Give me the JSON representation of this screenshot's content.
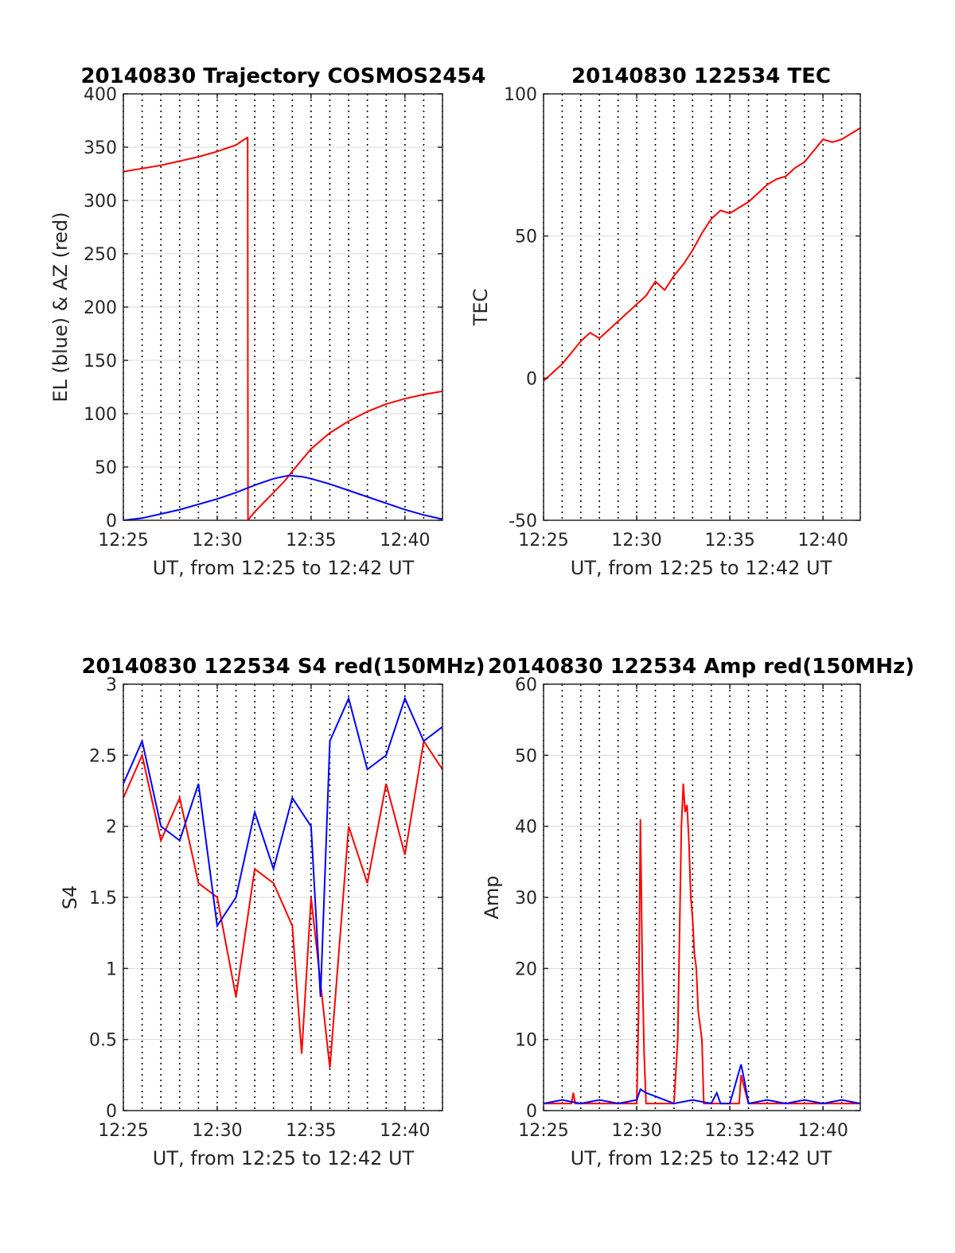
{
  "colors": {
    "red": "#ff0000",
    "blue": "#0000ff",
    "grid": "#d9d9d9",
    "axis": "#262626"
  },
  "chart_data": [
    {
      "type": "line",
      "title": "20140830 Trajectory COSMOS2454",
      "xlabel": "UT, from 12:25 to 12:42 UT",
      "ylabel": "EL (blue) & AZ (red)",
      "xlim": [
        0,
        17
      ],
      "ylim": [
        0,
        400
      ],
      "xticks": [
        0,
        5,
        10,
        15
      ],
      "xtick_labels": [
        "12:25",
        "12:30",
        "12:35",
        "12:40"
      ],
      "yticks": [
        0,
        50,
        100,
        150,
        200,
        250,
        300,
        350,
        400
      ],
      "ytick_labels": [
        "0",
        "50",
        "100",
        "150",
        "200",
        "250",
        "300",
        "350",
        "400"
      ],
      "series": [
        {
          "color": "red",
          "x": [
            0.0,
            2.0,
            4.0,
            5.0,
            6.0,
            6.6,
            6.62,
            6.64,
            7.0,
            8.0,
            8.6,
            9.0,
            10.0,
            11.0,
            12.0,
            13.0,
            14.0,
            15.0,
            16.0,
            17.0
          ],
          "y": [
            327,
            333,
            341,
            346,
            352,
            359,
            359,
            0,
            8,
            26,
            37,
            46,
            67,
            82,
            93,
            102,
            109,
            114,
            118,
            121
          ]
        },
        {
          "color": "blue",
          "x": [
            0.0,
            1.0,
            2.0,
            3.0,
            4.0,
            5.0,
            6.0,
            7.0,
            8.0,
            8.8,
            9.5,
            10.0,
            11.0,
            12.0,
            13.0,
            14.0,
            15.0,
            16.0,
            17.0
          ],
          "y": [
            0,
            2,
            6,
            10,
            15,
            20,
            26,
            33,
            39,
            42,
            41,
            39,
            34,
            28,
            22,
            16,
            10,
            5,
            1
          ]
        }
      ]
    },
    {
      "type": "line",
      "title": "20140830 122534 TEC",
      "xlabel": "UT, from 12:25 to 12:42 UT",
      "ylabel": "TEC",
      "xlim": [
        0,
        17
      ],
      "ylim": [
        -50,
        100
      ],
      "xticks": [
        0,
        5,
        10,
        15
      ],
      "xtick_labels": [
        "12:25",
        "12:30",
        "12:35",
        "12:40"
      ],
      "yticks": [
        -50,
        0,
        50,
        100
      ],
      "ytick_labels": [
        "-50",
        "0",
        "50",
        "100"
      ],
      "series": [
        {
          "color": "red",
          "x": [
            0.0,
            0.5,
            1.0,
            1.5,
            2.0,
            2.5,
            3.0,
            3.5,
            4.0,
            4.5,
            5.0,
            5.5,
            6.0,
            6.5,
            7.0,
            7.5,
            8.0,
            8.5,
            9.0,
            9.5,
            10.0,
            10.5,
            11.0,
            11.5,
            12.0,
            12.5,
            13.0,
            13.5,
            14.0,
            14.5,
            15.0,
            15.5,
            16.0,
            16.5,
            17.0
          ],
          "y": [
            -1,
            2,
            5,
            9,
            13,
            16,
            14,
            17,
            20,
            23,
            26,
            29,
            34,
            31,
            36,
            40,
            45,
            51,
            56,
            59,
            58,
            60,
            62,
            65,
            68,
            70,
            71,
            74,
            76,
            80,
            84,
            83,
            84,
            86,
            88
          ]
        }
      ]
    },
    {
      "type": "line",
      "title": "20140830 122534 S4 red(150MHz)",
      "xlabel": "UT, from 12:25 to 12:42 UT",
      "ylabel": "S4",
      "xlim": [
        0,
        17
      ],
      "ylim": [
        0,
        3
      ],
      "xticks": [
        0,
        5,
        10,
        15
      ],
      "xtick_labels": [
        "12:25",
        "12:30",
        "12:35",
        "12:40"
      ],
      "yticks": [
        0,
        0.5,
        1,
        1.5,
        2,
        2.5,
        3
      ],
      "ytick_labels": [
        "0",
        "0.5",
        "1",
        "1.5",
        "2",
        "2.5",
        "3"
      ],
      "series": [
        {
          "color": "red",
          "x": [
            0.0,
            1.0,
            2.0,
            3.0,
            4.0,
            5.0,
            6.0,
            7.0,
            8.0,
            9.0,
            9.5,
            10.0,
            10.5,
            11.0,
            12.0,
            13.0,
            14.0,
            15.0,
            16.0,
            17.0
          ],
          "y": [
            2.2,
            2.5,
            1.9,
            2.2,
            1.6,
            1.5,
            0.8,
            1.7,
            1.6,
            1.3,
            0.4,
            1.5,
            0.9,
            0.3,
            2.0,
            1.6,
            2.3,
            1.8,
            2.6,
            2.4
          ]
        },
        {
          "color": "blue",
          "x": [
            0.0,
            1.0,
            2.0,
            3.0,
            4.0,
            5.0,
            6.0,
            7.0,
            8.0,
            9.0,
            10.0,
            10.5,
            11.0,
            12.0,
            13.0,
            14.0,
            15.0,
            16.0,
            17.0
          ],
          "y": [
            2.3,
            2.6,
            2.0,
            1.9,
            2.3,
            1.3,
            1.5,
            2.1,
            1.7,
            2.2,
            2.0,
            0.8,
            2.6,
            2.9,
            2.4,
            2.5,
            2.9,
            2.6,
            2.7
          ]
        }
      ]
    },
    {
      "type": "line",
      "title": "20140830 122534 Amp red(150MHz)",
      "xlabel": "UT, from 12:25 to 12:42 UT",
      "ylabel": "Amp",
      "xlim": [
        0,
        17
      ],
      "ylim": [
        0,
        60
      ],
      "xticks": [
        0,
        5,
        10,
        15
      ],
      "xtick_labels": [
        "12:25",
        "12:30",
        "12:35",
        "12:40"
      ],
      "yticks": [
        0,
        10,
        20,
        30,
        40,
        50,
        60
      ],
      "ytick_labels": [
        "0",
        "10",
        "20",
        "30",
        "40",
        "50",
        "60"
      ],
      "series": [
        {
          "color": "red",
          "x": [
            0.0,
            1.5,
            1.6,
            1.7,
            5.0,
            5.1,
            5.2,
            5.3,
            5.4,
            5.5,
            7.0,
            7.2,
            7.4,
            7.5,
            7.6,
            7.7,
            7.8,
            7.9,
            8.0,
            8.1,
            8.2,
            8.3,
            8.5,
            8.6,
            10.5,
            10.6,
            10.8,
            11.0,
            17.0
          ],
          "y": [
            1,
            1,
            2.5,
            1,
            1,
            14,
            41,
            20,
            8,
            1,
            1,
            10,
            40,
            46,
            42,
            43,
            38,
            30,
            27,
            22,
            20,
            14,
            10,
            1,
            1,
            5,
            3,
            1,
            1
          ]
        },
        {
          "color": "blue",
          "x": [
            0.0,
            1.0,
            2.0,
            3.0,
            4.0,
            5.0,
            5.2,
            5.5,
            6.0,
            7.0,
            8.0,
            9.0,
            9.3,
            9.5,
            10.0,
            10.6,
            10.8,
            11.0,
            12.0,
            13.0,
            14.0,
            15.0,
            16.0,
            17.0
          ],
          "y": [
            1,
            1.5,
            1,
            1.5,
            1,
            1.5,
            3,
            2.5,
            2,
            1,
            1.5,
            1,
            2.5,
            1,
            1,
            6.5,
            4,
            1,
            1.5,
            1,
            1.5,
            1,
            1.5,
            1
          ]
        }
      ]
    }
  ]
}
